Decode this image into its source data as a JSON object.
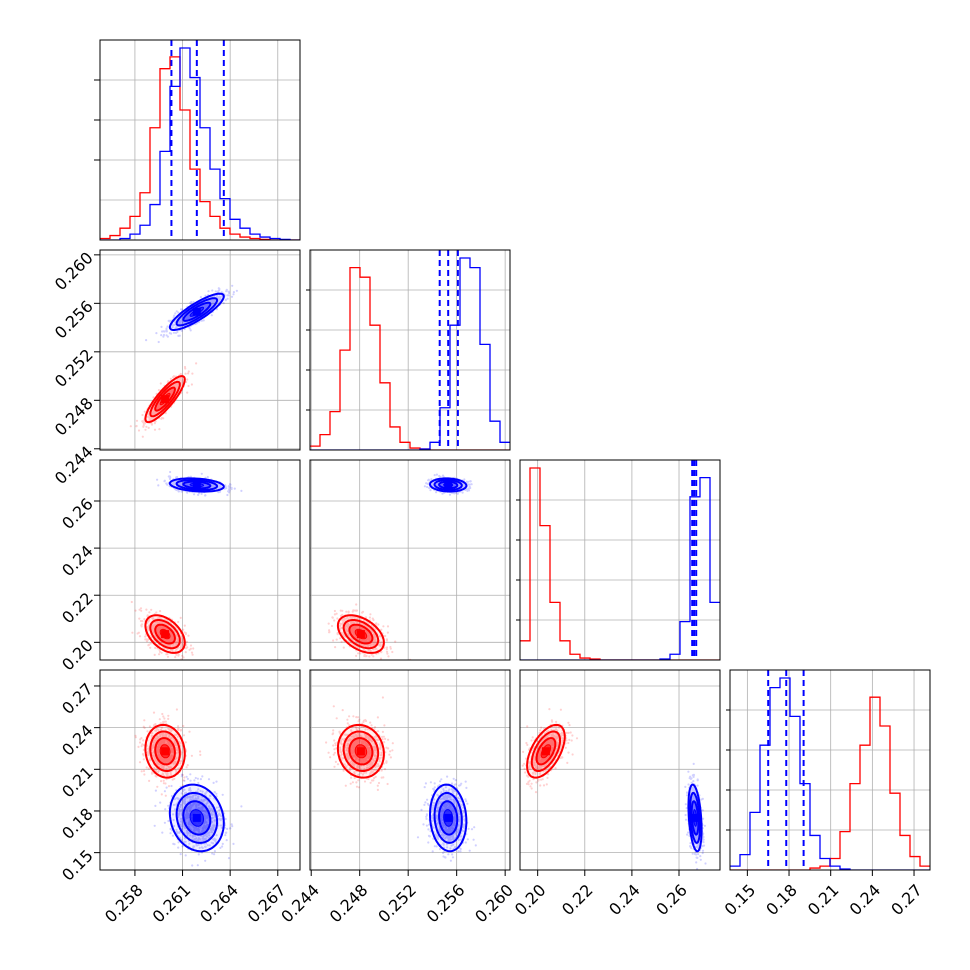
{
  "chart_data": {
    "type": "corner",
    "grid": true,
    "parameters": [
      "",
      "",
      "",
      ""
    ],
    "param_ranges": [
      [
        0.2558,
        0.2684
      ],
      [
        0.2439,
        0.2604
      ],
      [
        0.1925,
        0.2774
      ],
      [
        0.1375,
        0.2815
      ]
    ],
    "param_ticks": [
      [
        "0.258",
        "0.261",
        "0.264",
        "0.267"
      ],
      [
        "0.244",
        "0.248",
        "0.252",
        "0.256",
        "0.260"
      ],
      [
        "0.20",
        "0.22",
        "0.24",
        "0.26"
      ],
      [
        "0.15",
        "0.18",
        "0.21",
        "0.24",
        "0.27"
      ]
    ],
    "y_ticks_hidden_on_first_diagonal": true,
    "series": [
      {
        "colour": "#ff0000",
        "mean": [
          0.2599,
          0.2481,
          0.2035,
          0.223
        ],
        "std": [
          0.00062,
          0.00095,
          0.004,
          0.0095
        ],
        "corr": [
          [
            1,
            0.85,
            -0.45,
            -0.1
          ],
          [
            0.85,
            1,
            -0.45,
            -0.1
          ],
          [
            -0.45,
            -0.45,
            1,
            0.55
          ],
          [
            -0.1,
            -0.1,
            0.55,
            1
          ]
        ],
        "histograms": [
          {
            "edges_start": 0.2558,
            "edges_end": 0.2684,
            "counts": [
              0.5,
              1.5,
              4,
              8,
              16,
              38,
              58,
              62,
              44,
              24,
              13,
              8,
              4,
              2,
              1,
              0.5,
              0.2,
              0,
              0,
              0
            ]
          },
          {
            "edges_start": 0.2439,
            "edges_end": 0.2604,
            "counts": [
              2,
              8,
              20,
              52,
              95,
              90,
              65,
              35,
              12,
              4,
              1,
              0.5,
              0,
              0,
              0,
              0,
              0,
              0,
              0,
              0
            ]
          },
          {
            "edges_start": 0.1925,
            "edges_end": 0.2774,
            "counts": [
              10,
              100,
              70,
              30,
              10,
              3,
              1,
              0.5,
              0,
              0,
              0,
              0,
              0,
              0,
              0,
              0,
              0,
              0,
              0,
              0
            ]
          },
          {
            "edges_start": 0.1375,
            "edges_end": 0.2815,
            "counts": [
              0,
              0,
              0,
              0,
              0,
              0,
              0,
              0,
              1,
              2,
              6,
              20,
              45,
              65,
              90,
              75,
              40,
              18,
              7,
              2
            ]
          }
        ]
      },
      {
        "colour": "#0000ff",
        "mean": [
          0.2619,
          0.2553,
          0.2668,
          0.175
        ],
        "std": [
          0.00085,
          0.00075,
          0.0014,
          0.012
        ],
        "corr": [
          [
            1,
            0.85,
            -0.25,
            -0.15
          ],
          [
            0.85,
            1,
            -0.1,
            -0.1
          ],
          [
            -0.25,
            -0.1,
            1,
            -0.35
          ],
          [
            -0.15,
            -0.1,
            -0.35,
            1
          ]
        ],
        "quantiles_16_50_84": [
          [
            0.2603,
            0.2619,
            0.2636
          ],
          [
            0.2546,
            0.2553,
            0.2561
          ],
          [
            0.2656,
            0.2664,
            0.2673
          ],
          [
            0.165,
            0.178,
            0.1905
          ]
        ],
        "histograms": [
          {
            "edges_start": 0.2558,
            "edges_end": 0.2684,
            "counts": [
              0,
              0,
              0.5,
              2,
              5,
              12,
              30,
              52,
              65,
              55,
              38,
              24,
              14,
              7,
              4,
              2,
              1,
              0.5,
              0.2,
              0
            ]
          },
          {
            "edges_start": 0.2439,
            "edges_end": 0.2604,
            "counts": [
              0,
              0,
              0,
              0,
              0,
              0,
              0,
              0,
              0,
              0,
              0,
              0.5,
              4,
              22,
              65,
              100,
              95,
              55,
              15,
              4
            ]
          },
          {
            "edges_start": 0.1925,
            "edges_end": 0.2774,
            "counts": [
              0,
              0,
              0,
              0,
              0,
              0,
              0,
              0,
              0,
              0,
              0,
              0,
              0,
              0,
              0.5,
              3,
              20,
              85,
              95,
              30
            ]
          },
          {
            "edges_start": 0.1375,
            "edges_end": 0.2815,
            "counts": [
              2,
              8,
              30,
              65,
              95,
              100,
              80,
              45,
              18,
              6,
              2,
              0.5,
              0,
              0,
              0,
              0,
              0,
              0,
              0,
              0
            ]
          }
        ]
      }
    ]
  }
}
